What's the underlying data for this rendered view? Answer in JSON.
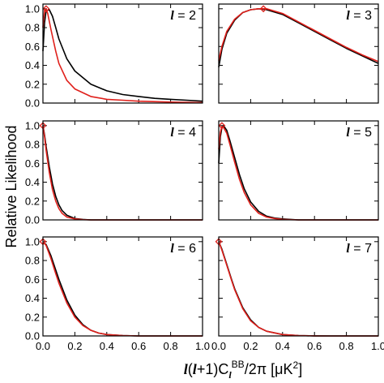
{
  "chart_data": {
    "type": "line",
    "ylabel": "Relative Likelihood",
    "xlabel_parts": {
      "l1": "l",
      "open": "(",
      "l2": "l",
      "mid": "+1)C",
      "sub": "l",
      "sup": "BB",
      "tail": "/2π [μK",
      "pow": "2",
      "close": "]"
    },
    "xlim": [
      0.0,
      1.0
    ],
    "ylim": [
      0.0,
      1.05
    ],
    "x_ticks": [
      0.0,
      0.2,
      0.4,
      0.6,
      0.8,
      1.0
    ],
    "x_tick_labels": [
      "0.0",
      "0.2",
      "0.4",
      "0.6",
      "0.8",
      "1.0"
    ],
    "y_ticks": [
      0.0,
      0.2,
      0.4,
      0.6,
      0.8,
      1.0
    ],
    "y_tick_labels": [
      "0.0",
      "0.2",
      "0.4",
      "0.6",
      "0.8",
      "1.0"
    ],
    "colors": {
      "series_black": "#000000",
      "series_red": "#e0201b"
    },
    "panels": [
      {
        "label_symbol": "l",
        "label_value": "= 2",
        "series": [
          {
            "color": "#000000",
            "x": [
              0,
              0.01,
              0.02,
              0.04,
              0.06,
              0.08,
              0.1,
              0.15,
              0.2,
              0.3,
              0.4,
              0.5,
              0.6,
              0.7,
              0.8,
              0.9,
              1.0
            ],
            "y": [
              0.55,
              0.85,
              0.98,
              0.99,
              0.92,
              0.8,
              0.68,
              0.47,
              0.34,
              0.2,
              0.13,
              0.09,
              0.07,
              0.05,
              0.04,
              0.03,
              0.02
            ]
          },
          {
            "color": "#e0201b",
            "x": [
              0,
              0.01,
              0.02,
              0.03,
              0.05,
              0.08,
              0.1,
              0.15,
              0.2,
              0.3,
              0.4,
              0.5,
              0.6,
              0.8,
              1.0
            ],
            "y": [
              0.8,
              0.98,
              1.0,
              0.95,
              0.78,
              0.55,
              0.42,
              0.24,
              0.15,
              0.07,
              0.04,
              0.03,
              0.02,
              0.01,
              0.005
            ]
          }
        ],
        "marker": {
          "x": 0.02,
          "y": 1.0
        }
      },
      {
        "label_symbol": "l",
        "label_value": "= 3",
        "series": [
          {
            "color": "#000000",
            "x": [
              0,
              0.02,
              0.05,
              0.1,
              0.15,
              0.2,
              0.25,
              0.3,
              0.4,
              0.5,
              0.6,
              0.7,
              0.8,
              0.9,
              1.0
            ],
            "y": [
              0.38,
              0.57,
              0.74,
              0.88,
              0.96,
              0.99,
              1.0,
              0.99,
              0.94,
              0.85,
              0.76,
              0.67,
              0.58,
              0.5,
              0.42
            ]
          },
          {
            "color": "#e0201b",
            "x": [
              0,
              0.02,
              0.05,
              0.1,
              0.15,
              0.2,
              0.25,
              0.28,
              0.3,
              0.4,
              0.5,
              0.6,
              0.7,
              0.8,
              0.9,
              1.0
            ],
            "y": [
              0.45,
              0.6,
              0.76,
              0.89,
              0.96,
              0.99,
              1.0,
              1.0,
              1.0,
              0.95,
              0.86,
              0.77,
              0.68,
              0.59,
              0.51,
              0.44
            ]
          }
        ],
        "marker": {
          "x": 0.28,
          "y": 1.0
        }
      },
      {
        "label_symbol": "l",
        "label_value": "= 4",
        "series": [
          {
            "color": "#000000",
            "x": [
              0,
              0.01,
              0.02,
              0.04,
              0.06,
              0.08,
              0.1,
              0.12,
              0.15,
              0.2,
              0.25,
              0.3,
              0.4,
              0.6,
              1.0
            ],
            "y": [
              1.0,
              0.9,
              0.78,
              0.56,
              0.38,
              0.25,
              0.16,
              0.1,
              0.05,
              0.015,
              0.005,
              0.0,
              0.0,
              0.0,
              0.0
            ]
          },
          {
            "color": "#e0201b",
            "x": [
              0,
              0.01,
              0.02,
              0.04,
              0.06,
              0.08,
              0.1,
              0.12,
              0.15,
              0.2,
              0.25,
              0.3,
              0.4,
              0.6,
              1.0
            ],
            "y": [
              1.0,
              0.88,
              0.74,
              0.5,
              0.32,
              0.2,
              0.12,
              0.07,
              0.03,
              0.01,
              0.003,
              0.0,
              0.0,
              0.0,
              0.0
            ]
          }
        ],
        "marker": {
          "x": 0.0,
          "y": 1.0
        }
      },
      {
        "label_symbol": "l",
        "label_value": "= 5",
        "series": [
          {
            "color": "#000000",
            "x": [
              0,
              0.01,
              0.02,
              0.03,
              0.05,
              0.07,
              0.1,
              0.13,
              0.16,
              0.2,
              0.25,
              0.3,
              0.35,
              0.4,
              0.5,
              0.6,
              0.8,
              1.0
            ],
            "y": [
              0.6,
              0.88,
              0.98,
              1.0,
              0.95,
              0.84,
              0.66,
              0.48,
              0.33,
              0.19,
              0.09,
              0.04,
              0.02,
              0.01,
              0.0,
              0.0,
              0.0,
              0.0
            ]
          },
          {
            "color": "#e0201b",
            "x": [
              0,
              0.01,
              0.02,
              0.03,
              0.05,
              0.07,
              0.1,
              0.13,
              0.16,
              0.2,
              0.25,
              0.3,
              0.35,
              0.4,
              0.5,
              0.6,
              0.8,
              1.0
            ],
            "y": [
              0.75,
              0.93,
              0.99,
              0.98,
              0.92,
              0.8,
              0.61,
              0.43,
              0.29,
              0.16,
              0.07,
              0.03,
              0.015,
              0.005,
              0.0,
              0.0,
              0.0,
              0.0
            ]
          }
        ],
        "marker": {
          "x": 0.02,
          "y": 1.0
        }
      },
      {
        "label_symbol": "l",
        "label_value": "= 6",
        "series": [
          {
            "color": "#000000",
            "x": [
              0,
              0.02,
              0.05,
              0.08,
              0.1,
              0.15,
              0.2,
              0.25,
              0.3,
              0.35,
              0.4,
              0.5,
              0.6,
              0.7,
              0.8,
              1.0
            ],
            "y": [
              0.99,
              0.97,
              0.85,
              0.7,
              0.6,
              0.38,
              0.22,
              0.12,
              0.06,
              0.03,
              0.015,
              0.004,
              0.0,
              0.0,
              0.0,
              0.0
            ]
          },
          {
            "color": "#e0201b",
            "x": [
              0,
              0.02,
              0.05,
              0.08,
              0.1,
              0.15,
              0.2,
              0.25,
              0.3,
              0.35,
              0.4,
              0.5,
              0.6,
              0.7,
              0.8,
              1.0
            ],
            "y": [
              1.0,
              0.96,
              0.82,
              0.66,
              0.56,
              0.35,
              0.2,
              0.11,
              0.06,
              0.03,
              0.015,
              0.004,
              0.0,
              0.0,
              0.0,
              0.0
            ]
          }
        ],
        "marker": {
          "x": 0.0,
          "y": 1.0
        }
      },
      {
        "label_symbol": "l",
        "label_value": "= 7",
        "series": [
          {
            "color": "#000000",
            "x": [
              0,
              0.02,
              0.05,
              0.08,
              0.1,
              0.15,
              0.2,
              0.25,
              0.3,
              0.4,
              0.5,
              0.6,
              0.7,
              0.8,
              1.0
            ],
            "y": [
              1.0,
              0.92,
              0.76,
              0.6,
              0.5,
              0.3,
              0.17,
              0.09,
              0.05,
              0.015,
              0.004,
              0.001,
              0.0,
              0.0,
              0.0
            ]
          },
          {
            "color": "#e0201b",
            "x": [
              0,
              0.02,
              0.05,
              0.08,
              0.1,
              0.15,
              0.2,
              0.25,
              0.3,
              0.4,
              0.5,
              0.6,
              0.7,
              0.8,
              1.0
            ],
            "y": [
              1.0,
              0.91,
              0.75,
              0.59,
              0.49,
              0.29,
              0.16,
              0.09,
              0.05,
              0.015,
              0.004,
              0.001,
              0.0,
              0.0,
              0.0
            ]
          }
        ],
        "marker": {
          "x": 0.0,
          "y": 1.0
        }
      }
    ]
  }
}
